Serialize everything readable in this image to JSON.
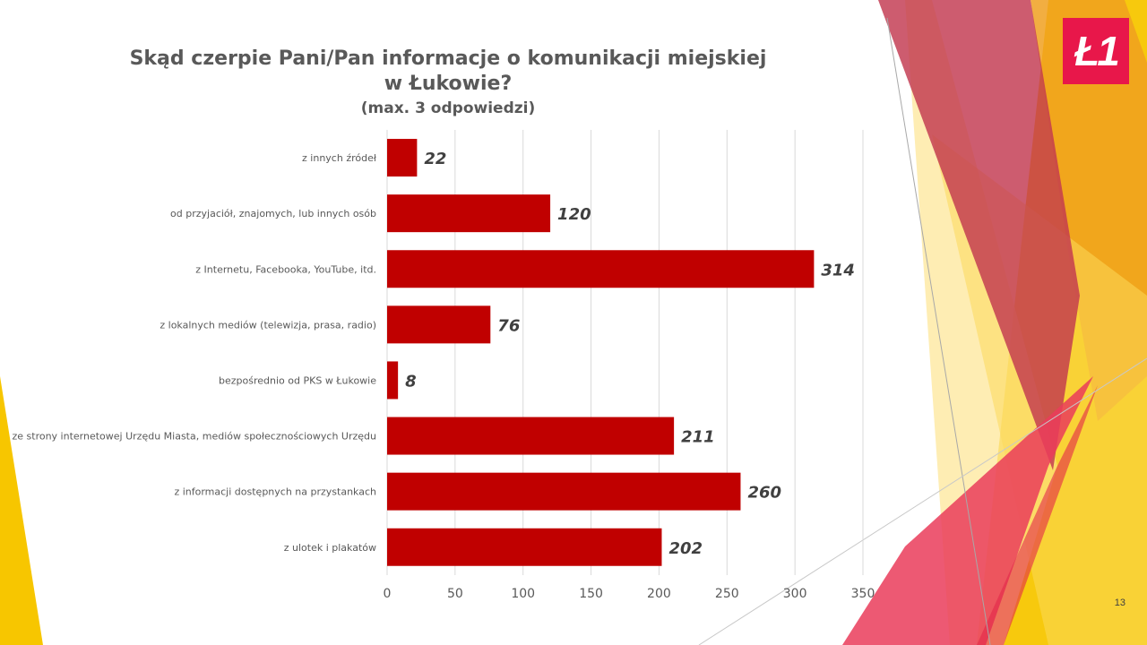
{
  "page": {
    "number": "13",
    "logo_text": "Ł1"
  },
  "colors": {
    "bar": "#c00000",
    "axis_text": "#595959",
    "grid": "#d9d9d9",
    "title": "#595959",
    "logo_bg": "#e8174a"
  },
  "chart_data": {
    "type": "bar",
    "orientation": "horizontal",
    "title": "Skąd czerpie Pani/Pan informacje o komunikacji miejskiej w Łukowie?",
    "subtitle": "(max. 3 odpowiedzi)",
    "categories": [
      "z innych źródeł",
      "od przyjaciół, znajomych, lub innych osób",
      "z Internetu, Facebooka, YouTube, itd.",
      "z lokalnych mediów (telewizja, prasa, radio)",
      "bezpośrednio od PKS w Łukowie",
      "ze strony internetowej Urzędu Miasta, mediów społecznościowych Urzędu",
      "z informacji dostępnych na przystankach",
      "z ulotek i plakatów"
    ],
    "values": [
      22,
      120,
      314,
      76,
      8,
      211,
      260,
      202
    ],
    "xlim": [
      0,
      350
    ],
    "xticks": [
      "0",
      "50",
      "100",
      "150",
      "200",
      "250",
      "300",
      "350"
    ],
    "grid": true,
    "legend": false,
    "data_labels": true
  }
}
